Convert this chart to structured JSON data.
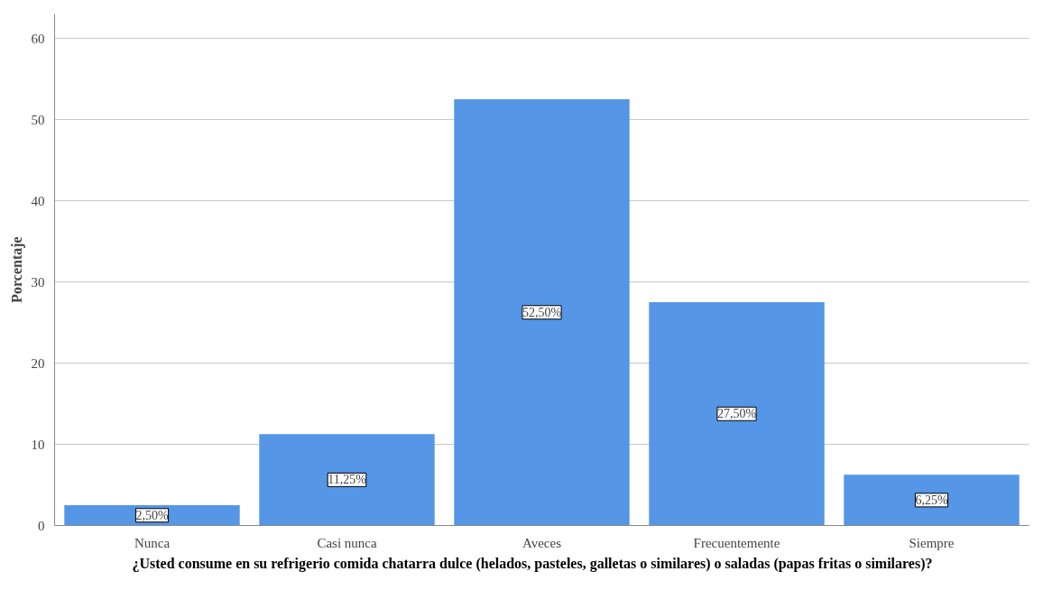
{
  "chart_data": {
    "type": "bar",
    "ylabel": "Porcentaje",
    "xlabel": "¿Usted consume en su refrigerio comida chatarra dulce (helados, pasteles, galletas o similares) o saladas (papas fritas o similares)?",
    "categories": [
      "Nunca",
      "Casi nunca",
      "Aveces",
      "Frecuentemente",
      "Siempre"
    ],
    "values": [
      2.5,
      11.25,
      52.5,
      27.5,
      6.25
    ],
    "value_labels": [
      "2,50%",
      "11,25%",
      "52,50%",
      "27,50%",
      "6,25%"
    ],
    "color": "#5596e6",
    "ylim": [
      0,
      63
    ],
    "yticks": [
      0,
      10,
      20,
      30,
      40,
      50,
      60
    ],
    "grid": "y"
  }
}
